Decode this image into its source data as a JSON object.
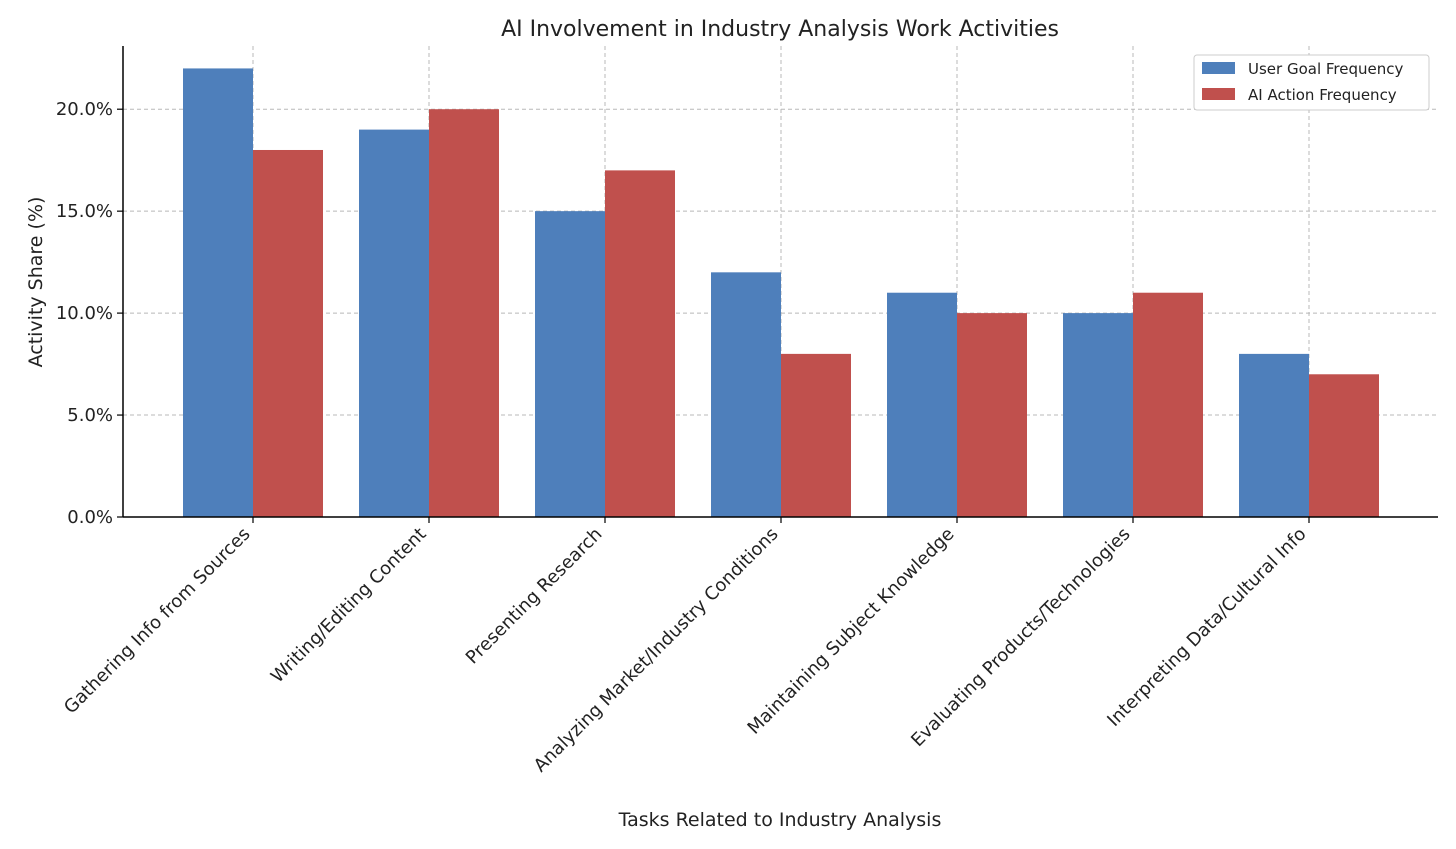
{
  "chart_data": {
    "type": "bar",
    "title": "AI Involvement in Industry Analysis Work Activities",
    "xlabel": "Tasks Related to Industry Analysis",
    "ylabel": "Activity Share (%)",
    "categories": [
      "Gathering Info from Sources",
      "Writing/Editing Content",
      "Presenting Research",
      "Analyzing Market/Industry Conditions",
      "Maintaining Subject Knowledge",
      "Evaluating Products/Technologies",
      "Interpreting Data/Cultural Info"
    ],
    "series": [
      {
        "name": "User Goal Frequency",
        "color": "#4e7fbb",
        "values": [
          22,
          19,
          15,
          12,
          11,
          10,
          8
        ]
      },
      {
        "name": "AI Action Frequency",
        "color": "#c0504d",
        "values": [
          18,
          20,
          17,
          8,
          10,
          11,
          7
        ]
      }
    ],
    "ylim": [
      0,
      23.1
    ],
    "yticks": [
      0,
      5,
      10,
      15,
      20
    ],
    "ytick_labels": [
      "0.0%",
      "5.0%",
      "10.0%",
      "15.0%",
      "20.0%"
    ],
    "grid": true,
    "legend_position": "top-right"
  }
}
